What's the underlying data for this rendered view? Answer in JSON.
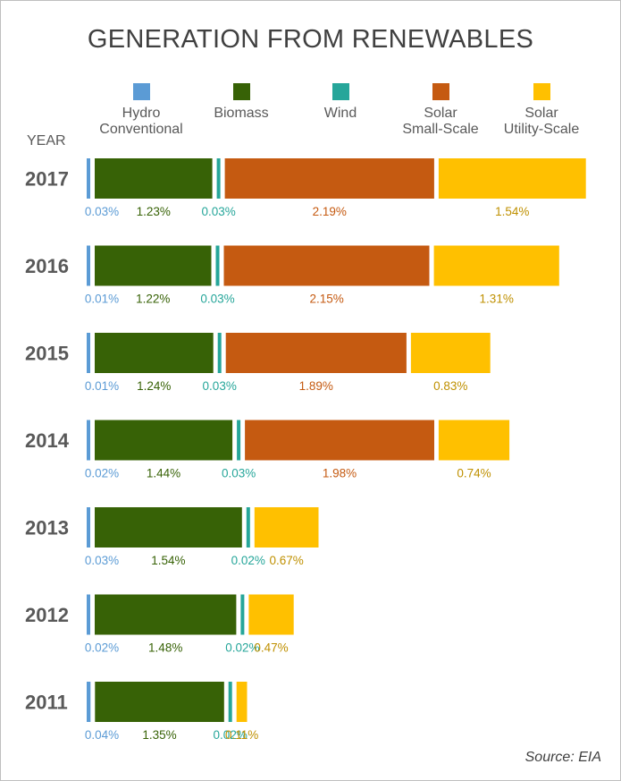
{
  "chart_data": {
    "type": "bar",
    "subtype": "horizontal-stacked",
    "title": "GENERATION FROM RENEWABLES",
    "y_axis_header": "YEAR",
    "source": "Source: EIA",
    "categories": [
      "2017",
      "2016",
      "2015",
      "2014",
      "2013",
      "2012",
      "2011"
    ],
    "series": [
      {
        "name": "Hydro\nConventional",
        "color": "#5b9bd5",
        "label_color": "#5b9bd5",
        "values": [
          0.03,
          0.01,
          0.01,
          0.02,
          0.03,
          0.02,
          0.04
        ],
        "labels": [
          "0.03%",
          "0.01%",
          "0.01%",
          "0.02%",
          "0.03%",
          "0.02%",
          "0.04%"
        ]
      },
      {
        "name": "Biomass",
        "color": "#376206",
        "label_color": "#376206",
        "values": [
          1.23,
          1.22,
          1.24,
          1.44,
          1.54,
          1.48,
          1.35
        ],
        "labels": [
          "1.23%",
          "1.22%",
          "1.24%",
          "1.44%",
          "1.54%",
          "1.48%",
          "1.35%"
        ]
      },
      {
        "name": "Wind",
        "color": "#26a69a",
        "label_color": "#26a69a",
        "values": [
          0.03,
          0.03,
          0.03,
          0.03,
          0.02,
          0.02,
          0.02
        ],
        "labels": [
          "0.03%",
          "0.03%",
          "0.03%",
          "0.03%",
          "0.02%",
          "0.02%",
          "0.02%"
        ]
      },
      {
        "name": "Solar\nSmall-Scale",
        "color": "#c55a11",
        "label_color": "#c55a11",
        "values": [
          2.19,
          2.15,
          1.89,
          1.98,
          0,
          0,
          0
        ],
        "labels": [
          "2.19%",
          "2.15%",
          "1.89%",
          "1.98%",
          "",
          "",
          ""
        ]
      },
      {
        "name": "Solar\nUtility-Scale",
        "color": "#ffc000",
        "label_color": "#bf9000",
        "values": [
          1.54,
          1.31,
          0.83,
          0.74,
          0.67,
          0.47,
          0.11
        ],
        "labels": [
          "1.54%",
          "1.31%",
          "0.83%",
          "0.74%",
          "0.67%",
          "0.47%",
          "0.11%"
        ]
      }
    ]
  }
}
